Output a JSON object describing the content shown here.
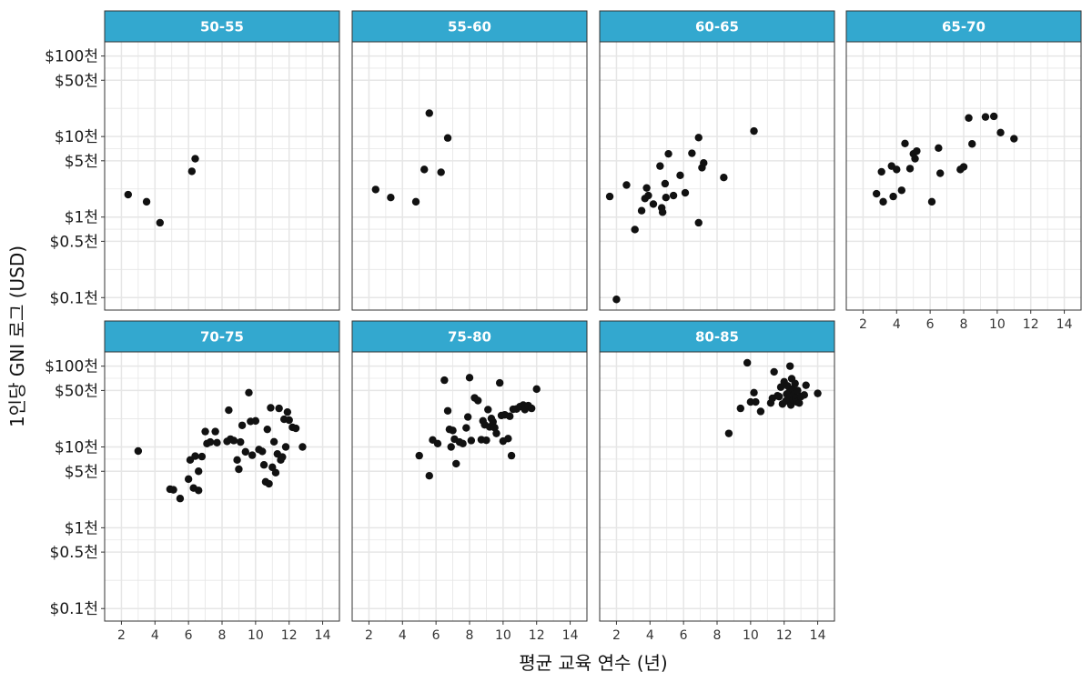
{
  "chart_data": {
    "type": "scatter",
    "facet_by": "life expectancy group",
    "xlabel": "평균 교육 연수 (년)",
    "ylabel": "1인당 GNI 로그 (USD)",
    "x_scale": "linear",
    "y_scale": "log",
    "xlim": [
      1,
      15
    ],
    "ylim": [
      70,
      150000
    ],
    "x_ticks": [
      2,
      4,
      6,
      8,
      10,
      12,
      14
    ],
    "y_ticks": [
      {
        "value": 100000,
        "label": "$100천"
      },
      {
        "value": 50000,
        "label": "$50천"
      },
      {
        "value": 10000,
        "label": "$10천"
      },
      {
        "value": 5000,
        "label": "$5천"
      },
      {
        "value": 1000,
        "label": "$1천"
      },
      {
        "value": 500,
        "label": "$0.5천"
      },
      {
        "value": 100,
        "label": "$0.1천"
      }
    ],
    "grid": true,
    "colors": {
      "strip": "#33a8cf",
      "point": "#111111",
      "grid": "#e6e6e6",
      "border": "#333333"
    },
    "panels": [
      {
        "label": "50-55",
        "points": [
          [
            2.4,
            1900
          ],
          [
            3.5,
            1550
          ],
          [
            4.3,
            850
          ],
          [
            6.2,
            3700
          ],
          [
            6.4,
            5300
          ]
        ]
      },
      {
        "label": "55-60",
        "points": [
          [
            2.4,
            2200
          ],
          [
            3.3,
            1750
          ],
          [
            4.8,
            1550
          ],
          [
            5.3,
            3900
          ],
          [
            5.6,
            19500
          ],
          [
            6.3,
            3600
          ],
          [
            6.7,
            9600
          ]
        ]
      },
      {
        "label": "60-65",
        "points": [
          [
            1.6,
            1800
          ],
          [
            2.0,
            95
          ],
          [
            2.6,
            2500
          ],
          [
            3.1,
            700
          ],
          [
            3.5,
            1200
          ],
          [
            3.7,
            1700
          ],
          [
            3.8,
            2300
          ],
          [
            3.9,
            1850
          ],
          [
            4.2,
            1450
          ],
          [
            4.6,
            4300
          ],
          [
            4.7,
            1300
          ],
          [
            4.75,
            1150
          ],
          [
            4.9,
            2600
          ],
          [
            4.95,
            1750
          ],
          [
            5.1,
            6100
          ],
          [
            5.4,
            1850
          ],
          [
            5.8,
            3300
          ],
          [
            6.1,
            2000
          ],
          [
            6.5,
            6200
          ],
          [
            6.9,
            850
          ],
          [
            6.9,
            9700
          ],
          [
            7.1,
            4100
          ],
          [
            7.2,
            4700
          ],
          [
            8.4,
            3100
          ],
          [
            10.2,
            11700
          ]
        ]
      },
      {
        "label": "65-70",
        "points": [
          [
            2.8,
            1950
          ],
          [
            3.1,
            3650
          ],
          [
            3.2,
            1550
          ],
          [
            3.7,
            4300
          ],
          [
            3.8,
            1800
          ],
          [
            4.0,
            3900
          ],
          [
            4.3,
            2150
          ],
          [
            4.5,
            8200
          ],
          [
            4.8,
            4000
          ],
          [
            5.0,
            6100
          ],
          [
            5.1,
            5300
          ],
          [
            5.2,
            6600
          ],
          [
            6.1,
            1550
          ],
          [
            6.5,
            7200
          ],
          [
            6.6,
            3500
          ],
          [
            7.8,
            3900
          ],
          [
            8.0,
            4200
          ],
          [
            8.3,
            17000
          ],
          [
            8.5,
            8100
          ],
          [
            9.3,
            17500
          ],
          [
            9.8,
            17800
          ],
          [
            10.2,
            11200
          ],
          [
            11.0,
            9400
          ]
        ]
      },
      {
        "label": "70-75",
        "points": [
          [
            3.0,
            8900
          ],
          [
            4.9,
            3000
          ],
          [
            5.1,
            2950
          ],
          [
            5.5,
            2300
          ],
          [
            6.0,
            4000
          ],
          [
            6.1,
            6900
          ],
          [
            6.3,
            3100
          ],
          [
            6.4,
            7700
          ],
          [
            6.6,
            5000
          ],
          [
            6.6,
            2900
          ],
          [
            6.8,
            7600
          ],
          [
            7.0,
            15500
          ],
          [
            7.1,
            11000
          ],
          [
            7.3,
            11500
          ],
          [
            7.6,
            15500
          ],
          [
            7.7,
            11300
          ],
          [
            8.3,
            11700
          ],
          [
            8.4,
            28500
          ],
          [
            8.5,
            12500
          ],
          [
            8.7,
            12000
          ],
          [
            8.9,
            6900
          ],
          [
            9.0,
            5300
          ],
          [
            9.1,
            11500
          ],
          [
            9.2,
            18500
          ],
          [
            9.4,
            8700
          ],
          [
            9.6,
            47000
          ],
          [
            9.7,
            20700
          ],
          [
            9.8,
            7900
          ],
          [
            10.0,
            21000
          ],
          [
            10.2,
            9300
          ],
          [
            10.4,
            8800
          ],
          [
            10.5,
            6000
          ],
          [
            10.6,
            3700
          ],
          [
            10.7,
            16500
          ],
          [
            10.8,
            3500
          ],
          [
            10.9,
            30500
          ],
          [
            11.0,
            5600
          ],
          [
            11.1,
            11600
          ],
          [
            11.2,
            4800
          ],
          [
            11.3,
            8200
          ],
          [
            11.4,
            30000
          ],
          [
            11.5,
            6900
          ],
          [
            11.6,
            7500
          ],
          [
            11.7,
            22000
          ],
          [
            11.8,
            10000
          ],
          [
            11.9,
            27000
          ],
          [
            12.0,
            21500
          ],
          [
            12.2,
            17500
          ],
          [
            12.4,
            17000
          ],
          [
            12.8,
            10000
          ]
        ]
      },
      {
        "label": "75-80",
        "points": [
          [
            5.0,
            7800
          ],
          [
            5.6,
            4400
          ],
          [
            5.8,
            12200
          ],
          [
            6.1,
            11000
          ],
          [
            6.5,
            67000
          ],
          [
            6.7,
            28000
          ],
          [
            6.8,
            16500
          ],
          [
            6.9,
            10000
          ],
          [
            7.0,
            16000
          ],
          [
            7.1,
            12500
          ],
          [
            7.2,
            6200
          ],
          [
            7.4,
            11500
          ],
          [
            7.6,
            11000
          ],
          [
            7.8,
            17200
          ],
          [
            7.9,
            23500
          ],
          [
            8.0,
            72000
          ],
          [
            8.1,
            12000
          ],
          [
            8.3,
            40500
          ],
          [
            8.5,
            37500
          ],
          [
            8.7,
            12300
          ],
          [
            8.8,
            21000
          ],
          [
            8.9,
            18800
          ],
          [
            9.0,
            12100
          ],
          [
            9.1,
            29000
          ],
          [
            9.2,
            17700
          ],
          [
            9.3,
            22500
          ],
          [
            9.4,
            20500
          ],
          [
            9.5,
            17300
          ],
          [
            9.6,
            14700
          ],
          [
            9.8,
            62000
          ],
          [
            9.9,
            24500
          ],
          [
            10.0,
            11800
          ],
          [
            10.1,
            25000
          ],
          [
            10.3,
            12700
          ],
          [
            10.4,
            24000
          ],
          [
            10.5,
            7800
          ],
          [
            10.6,
            29300
          ],
          [
            10.8,
            29500
          ],
          [
            11.0,
            31500
          ],
          [
            11.2,
            33000
          ],
          [
            11.3,
            29000
          ],
          [
            11.5,
            32500
          ],
          [
            11.7,
            30000
          ],
          [
            12.0,
            52000
          ]
        ]
      },
      {
        "label": "80-85",
        "points": [
          [
            8.7,
            14700
          ],
          [
            9.4,
            30000
          ],
          [
            9.8,
            110000
          ],
          [
            10.0,
            36000
          ],
          [
            10.2,
            47000
          ],
          [
            10.3,
            36000
          ],
          [
            10.6,
            27500
          ],
          [
            11.2,
            35000
          ],
          [
            11.3,
            40000
          ],
          [
            11.4,
            85000
          ],
          [
            11.6,
            43000
          ],
          [
            11.7,
            42000
          ],
          [
            11.8,
            55000
          ],
          [
            11.9,
            34000
          ],
          [
            12.0,
            64000
          ],
          [
            12.1,
            37000
          ],
          [
            12.15,
            45000
          ],
          [
            12.2,
            57000
          ],
          [
            12.25,
            40000
          ],
          [
            12.3,
            48000
          ],
          [
            12.35,
            100000
          ],
          [
            12.4,
            33000
          ],
          [
            12.45,
            70000
          ],
          [
            12.5,
            52000
          ],
          [
            12.55,
            38000
          ],
          [
            12.6,
            45000
          ],
          [
            12.65,
            61000
          ],
          [
            12.7,
            40000
          ],
          [
            12.75,
            36000
          ],
          [
            12.8,
            50000
          ],
          [
            12.9,
            35000
          ],
          [
            13.0,
            42000
          ],
          [
            13.2,
            44000
          ],
          [
            13.3,
            58000
          ],
          [
            14.0,
            46000
          ]
        ]
      }
    ]
  }
}
